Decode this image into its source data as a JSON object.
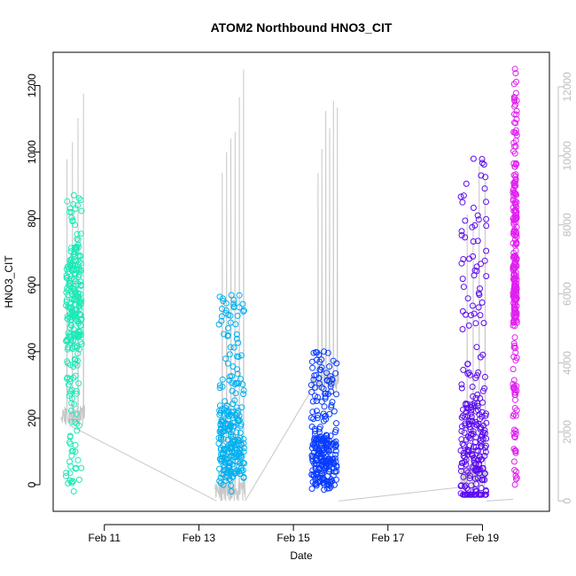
{
  "chart_data": {
    "type": "scatter",
    "title": "ATOM2 Northbound HNO3_CIT",
    "xlabel": "Date",
    "ylabel": "HNO3_CIT",
    "grid": false,
    "legend": "none",
    "xlim": [
      "2016-02-09T22:00",
      "2016-02-20T10:00"
    ],
    "ylim": [
      -80,
      1300
    ],
    "x_ticks": [
      "2016-02-11",
      "2016-02-13",
      "2016-02-15",
      "2016-02-17",
      "2016-02-19"
    ],
    "x_tick_labels": [
      "Feb 11",
      "Feb 13",
      "Feb 15",
      "Feb 17",
      "Feb 19"
    ],
    "y_ticks": [
      0,
      200,
      400,
      600,
      800,
      1000,
      1200
    ],
    "y_tick_labels": [
      "0",
      "200",
      "400",
      "600",
      "800",
      "1000",
      "1200"
    ],
    "y2": {
      "label": "",
      "color": "#bdbdbd",
      "ylim": [
        -300,
        13000
      ],
      "ticks": [
        0,
        2000,
        4000,
        6000,
        8000,
        10000,
        12000
      ],
      "tick_labels": [
        "0",
        "2000",
        "4000",
        "6000",
        "8000",
        "10000",
        "12000"
      ]
    },
    "series": [
      {
        "color": "#1de9b6",
        "x_range": [
          "2016-02-10T04:30",
          "2016-02-10T12:30"
        ],
        "y_range": [
          -20,
          870
        ],
        "y_mean": 560
      },
      {
        "color": "#00b0f0",
        "x_range": [
          "2016-02-13T10:00",
          "2016-02-13T23:00"
        ],
        "y_range": [
          -20,
          570
        ],
        "y_mean": 120
      },
      {
        "color": "#0a3cff",
        "x_range": [
          "2016-02-15T09:00",
          "2016-02-15T22:00"
        ],
        "y_range": [
          -15,
          400
        ],
        "y_mean": 70
      },
      {
        "color": "#5b0cf0",
        "x_range": [
          "2016-02-18T13:00",
          "2016-02-19T02:00"
        ],
        "y_range": [
          -30,
          980
        ],
        "y_mean": 90
      },
      {
        "color": "#e020f0",
        "x_range": [
          "2016-02-19T15:30",
          "2016-02-19T17:30"
        ],
        "y_range": [
          0,
          1250
        ],
        "y_mean": 700
      }
    ],
    "secondary_series": {
      "axis": "right",
      "color": "#c8c8c8",
      "type": "line",
      "segments": [
        {
          "x_range": [
            "2016-02-10T02:00",
            "2016-02-10T14:00"
          ],
          "peaks": [
            9900,
            10400,
            11100,
            11800
          ],
          "baseline": 2200
        },
        {
          "x_range": [
            "2016-02-13T08:00",
            "2016-02-13T23:30"
          ],
          "peaks": [
            9500,
            10100,
            10500,
            10700,
            11700,
            12500
          ],
          "baseline": 0
        },
        {
          "x_range": [
            "2016-02-15T09:00",
            "2016-02-15T23:00"
          ],
          "peaks": [
            9500,
            10200,
            11300,
            10800,
            11600,
            11400
          ],
          "baseline": 3200
        },
        {
          "x_range": [
            "2016-02-18T13:00",
            "2016-02-19T02:00"
          ],
          "peaks": [
            8300,
            8100,
            9700,
            9300
          ],
          "baseline": 400
        }
      ],
      "connectors": [
        {
          "from": [
            "2016-02-10T06:00",
            2200
          ],
          "to": [
            "2016-02-13T09:00",
            0
          ]
        },
        {
          "from": [
            "2016-02-13T23:30",
            0
          ],
          "to": [
            "2016-02-15T09:00",
            3200
          ]
        },
        {
          "from": [
            "2016-02-15T23:00",
            0
          ],
          "to": [
            "2016-02-18T13:00",
            400
          ]
        },
        {
          "from": [
            "2016-02-19T02:00",
            0
          ],
          "to": [
            "2016-02-19T15:30",
            50
          ]
        }
      ]
    }
  }
}
